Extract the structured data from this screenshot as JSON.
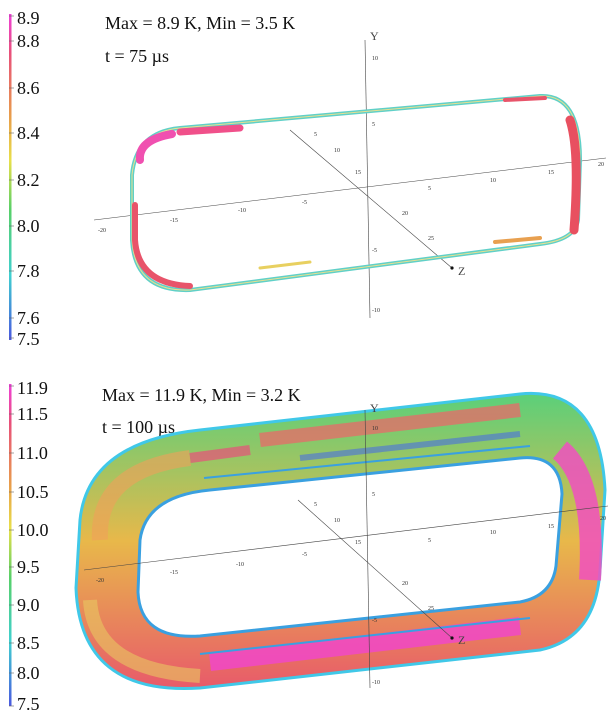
{
  "panels": [
    {
      "stats": "Max = 8.9 K, Min = 3.5 K",
      "time": "t = 75 µs",
      "colorbar_ticks": [
        "8.9",
        "8.8",
        "8.6",
        "8.4",
        "8.2",
        "8.0",
        "7.8",
        "7.6",
        "7.5"
      ],
      "colorbar_values": [
        8.9,
        8.8,
        8.6,
        8.4,
        8.2,
        8.0,
        7.8,
        7.6,
        7.5
      ]
    },
    {
      "stats": "Max = 11.9 K, Min = 3.2 K",
      "time": "t = 100 µs",
      "colorbar_ticks": [
        "11.9",
        "11.5",
        "11.0",
        "10.5",
        "10.0",
        "9.5",
        "9.0",
        "8.5",
        "8.0",
        "7.5"
      ],
      "colorbar_values": [
        11.9,
        11.5,
        11.0,
        10.5,
        10.0,
        9.5,
        9.0,
        8.5,
        8.0,
        7.5
      ]
    }
  ],
  "axes": {
    "y_label": "Y",
    "z_label": "Z",
    "x_ticks": [
      "-20",
      "-15",
      "-10",
      "-5",
      "5",
      "10",
      "15",
      "20"
    ],
    "y_ticks": [
      "10",
      "5",
      "-5",
      "-10"
    ],
    "z_ticks": [
      "5",
      "10",
      "15",
      "20",
      "25"
    ]
  },
  "colors": {
    "cb_top": "#e040e0",
    "hot": "#e8546a",
    "warm": "#e8c84a",
    "mid": "#5fd06a",
    "cool": "#40c8e8",
    "cold": "#4060e0"
  }
}
